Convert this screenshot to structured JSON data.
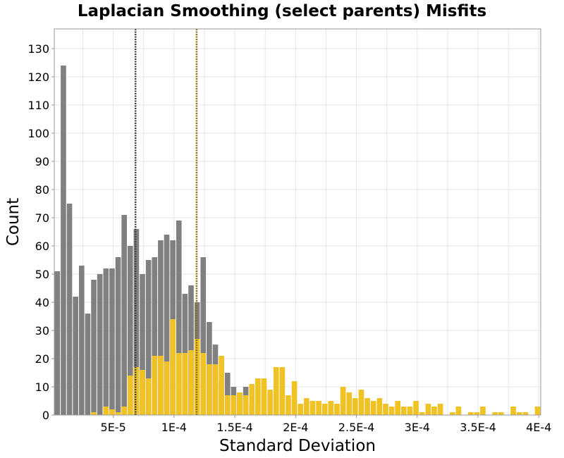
{
  "chart_data": {
    "type": "bar",
    "title": "Laplacian Smoothing (select parents) Misfits",
    "xlabel": "Standard Deviation",
    "ylabel": "Count",
    "xlim": [
      1.5e-06,
      0.0004016
    ],
    "ylim": [
      0,
      137
    ],
    "bin_width": 5e-06,
    "x_ticks": [
      {
        "value": 5e-05,
        "label": "5E-5"
      },
      {
        "value": 0.0001,
        "label": "1E-4"
      },
      {
        "value": 0.00015,
        "label": "1.5E-4"
      },
      {
        "value": 0.0002,
        "label": "2E-4"
      },
      {
        "value": 0.00025,
        "label": "2.5E-4"
      },
      {
        "value": 0.0003,
        "label": "3E-4"
      },
      {
        "value": 0.00035,
        "label": "3.5E-4"
      },
      {
        "value": 0.0004,
        "label": "4E-4"
      }
    ],
    "y_ticks": [
      {
        "value": 0,
        "label": "0"
      },
      {
        "value": 10,
        "label": "10"
      },
      {
        "value": 20,
        "label": "20"
      },
      {
        "value": 30,
        "label": "30"
      },
      {
        "value": 40,
        "label": "40"
      },
      {
        "value": 50,
        "label": "50"
      },
      {
        "value": 60,
        "label": "60"
      },
      {
        "value": 70,
        "label": "70"
      },
      {
        "value": 80,
        "label": "80"
      },
      {
        "value": 90,
        "label": "90"
      },
      {
        "value": 100,
        "label": "100"
      },
      {
        "value": 110,
        "label": "110"
      },
      {
        "value": 120,
        "label": "120"
      },
      {
        "value": 130,
        "label": "130"
      }
    ],
    "grid": true,
    "series": [
      {
        "color": "#808080",
        "x": [
          4e-06,
          9e-06,
          1.4e-05,
          1.9e-05,
          2.4e-05,
          2.9e-05,
          3.4e-05,
          3.9e-05,
          4.4e-05,
          4.9e-05,
          5.4e-05,
          5.9e-05,
          6.4e-05,
          6.9e-05,
          7.4e-05,
          7.9e-05,
          8.4e-05,
          8.9e-05,
          9.4e-05,
          9.9e-05,
          0.000104,
          0.000109,
          0.000114,
          0.000119,
          0.000124,
          0.000129,
          0.000134,
          0.000139,
          0.000144,
          0.000149,
          0.000154,
          0.000159,
          0.000164
        ],
        "values": [
          51,
          124,
          75,
          42,
          53,
          36,
          48,
          50,
          52,
          52,
          56,
          71,
          60,
          66,
          50,
          55,
          56,
          62,
          64,
          62,
          69,
          43,
          46,
          40,
          56,
          33,
          25,
          12,
          15,
          10,
          8,
          10,
          4
        ]
      },
      {
        "color": "#f0c224",
        "x": [
          3.4e-05,
          3.9e-05,
          4.4e-05,
          4.9e-05,
          5.4e-05,
          5.9e-05,
          6.4e-05,
          6.9e-05,
          7.4e-05,
          7.9e-05,
          8.4e-05,
          8.9e-05,
          9.4e-05,
          9.9e-05,
          0.000104,
          0.000109,
          0.000114,
          0.000119,
          0.000124,
          0.000129,
          0.000134,
          0.000139,
          0.000144,
          0.000149,
          0.000154,
          0.000159,
          0.000164,
          0.000169,
          0.000174,
          0.000179,
          0.000184,
          0.000189,
          0.000194,
          0.000199,
          0.000204,
          0.000209,
          0.000214,
          0.000219,
          0.000224,
          0.000229,
          0.000234,
          0.000239,
          0.000244,
          0.000249,
          0.000254,
          0.000259,
          0.000264,
          0.000269,
          0.000274,
          0.000279,
          0.000284,
          0.000289,
          0.000294,
          0.000299,
          0.000304,
          0.000309,
          0.000314,
          0.000319,
          0.000324,
          0.000329,
          0.000334,
          0.000339,
          0.000344,
          0.000349,
          0.000354,
          0.000359,
          0.000364,
          0.000369,
          0.000374,
          0.000379,
          0.000384,
          0.000389,
          0.000394,
          0.000399
        ],
        "values": [
          1,
          0,
          3,
          2,
          1,
          3,
          14,
          17,
          16,
          13,
          21,
          21,
          19,
          34,
          22,
          22,
          23,
          27,
          22,
          18,
          18,
          21,
          7,
          7,
          8,
          7,
          11,
          13,
          13,
          9,
          17,
          17,
          7,
          12,
          4,
          6,
          5,
          5,
          4,
          5,
          4,
          10,
          8,
          6,
          9,
          6,
          5,
          6,
          4,
          3,
          5,
          3,
          3,
          5,
          1,
          4,
          3,
          4,
          0,
          1,
          3,
          0,
          1,
          1,
          3,
          0,
          1,
          1,
          0,
          3,
          1,
          1,
          0,
          3
        ]
      }
    ],
    "vlines": [
      {
        "x": 6.83e-05,
        "color": "#404040"
      },
      {
        "x": 0.0001186,
        "color": "#8a6d10"
      }
    ]
  }
}
